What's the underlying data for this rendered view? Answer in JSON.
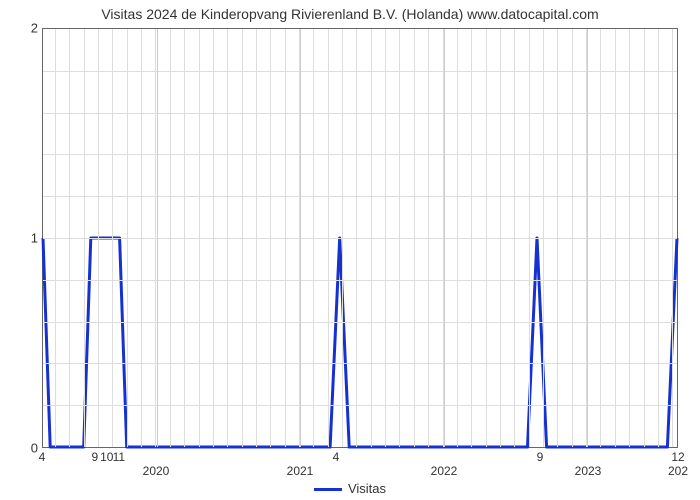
{
  "chart": {
    "type": "line-step",
    "title": "Visitas 2024 de Kinderopvang Rivierenland B.V. (Holanda) www.datocapital.com",
    "title_fontsize": 14,
    "title_color": "#333333",
    "background_color": "#ffffff",
    "plot_border_color": "#666666",
    "grid_color": "#dddddd",
    "line_color": "#1531d1",
    "line_width": 3,
    "y": {
      "min": 0,
      "max": 2,
      "ticks": [
        0,
        1,
        2
      ],
      "minor_ticks_between": 4
    },
    "x": {
      "min": 0,
      "max": 53,
      "year_label_positions": [
        {
          "label": "2020",
          "x": 9.5
        },
        {
          "label": "2021",
          "x": 21.5
        },
        {
          "label": "2022",
          "x": 33.5
        },
        {
          "label": "2023",
          "x": 45.5
        },
        {
          "label": "202",
          "x": 53
        }
      ],
      "month_tick_positions": [
        {
          "label": "4",
          "x": 0
        },
        {
          "label": "9",
          "x": 4.4
        },
        {
          "label": "10",
          "x": 5.4
        },
        {
          "label": "11",
          "x": 6.4
        },
        {
          "label": "4",
          "x": 24.5
        },
        {
          "label": "9",
          "x": 41.5
        },
        {
          "label": "12",
          "x": 53
        }
      ]
    },
    "series": {
      "name": "Visitas",
      "points": [
        [
          0.0,
          1.0
        ],
        [
          0.6,
          0.0
        ],
        [
          3.4,
          0.0
        ],
        [
          4.0,
          1.0
        ],
        [
          6.4,
          1.0
        ],
        [
          7.0,
          0.0
        ],
        [
          24.0,
          0.0
        ],
        [
          24.8,
          1.0
        ],
        [
          25.6,
          0.0
        ],
        [
          40.5,
          0.0
        ],
        [
          41.3,
          1.0
        ],
        [
          42.1,
          0.0
        ],
        [
          52.2,
          0.0
        ],
        [
          53.0,
          1.0
        ]
      ]
    },
    "legend": {
      "label": "Visitas",
      "swatch_color": "#1531d1"
    }
  }
}
